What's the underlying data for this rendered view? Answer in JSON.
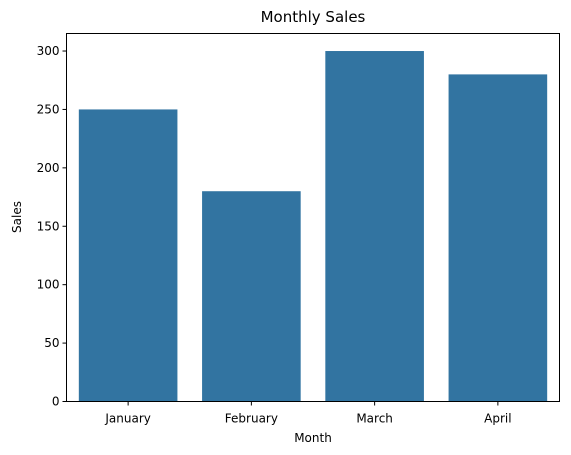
{
  "chart_data": {
    "type": "bar",
    "title": "Monthly Sales",
    "xlabel": "Month",
    "ylabel": "Sales",
    "categories": [
      "January",
      "February",
      "March",
      "April"
    ],
    "values": [
      250,
      180,
      300,
      280
    ],
    "ylim": [
      0,
      315
    ],
    "yticks": [
      0,
      50,
      100,
      150,
      200,
      250,
      300
    ],
    "bar_color": "#3274a1",
    "grid": false,
    "legend": "none"
  }
}
